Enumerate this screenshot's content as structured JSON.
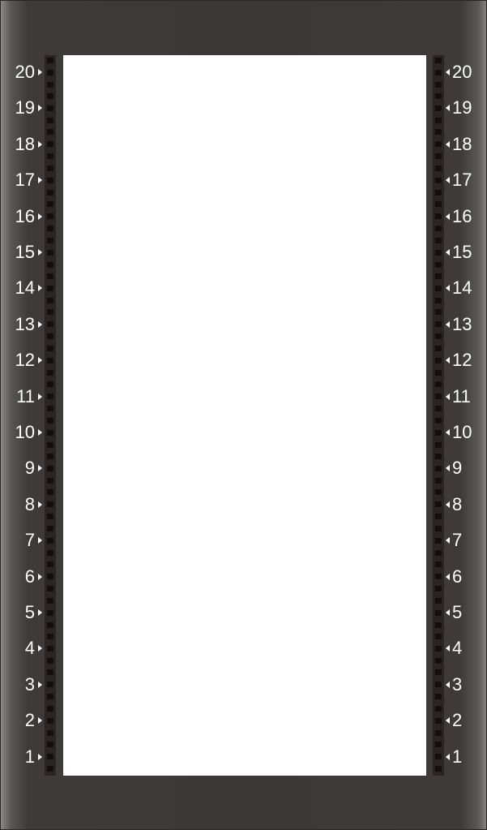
{
  "rack": {
    "frame_color": "#3c3838",
    "rail_color": "#2b2424",
    "opening_color": "#ffffff",
    "label_color": "#ffffff",
    "units": [
      {
        "id": "u20",
        "label": "20"
      },
      {
        "id": "u19",
        "label": "19"
      },
      {
        "id": "u18",
        "label": "18"
      },
      {
        "id": "u17",
        "label": "17"
      },
      {
        "id": "u16",
        "label": "16"
      },
      {
        "id": "u15",
        "label": "15"
      },
      {
        "id": "u14",
        "label": "14"
      },
      {
        "id": "u13",
        "label": "13"
      },
      {
        "id": "u12",
        "label": "12"
      },
      {
        "id": "u11",
        "label": "11"
      },
      {
        "id": "u10",
        "label": "10"
      },
      {
        "id": "u9",
        "label": "9"
      },
      {
        "id": "u8",
        "label": "8"
      },
      {
        "id": "u7",
        "label": "7"
      },
      {
        "id": "u6",
        "label": "6"
      },
      {
        "id": "u5",
        "label": "5"
      },
      {
        "id": "u4",
        "label": "4"
      },
      {
        "id": "u3",
        "label": "3"
      },
      {
        "id": "u2",
        "label": "2"
      },
      {
        "id": "u1",
        "label": "1"
      }
    ]
  }
}
